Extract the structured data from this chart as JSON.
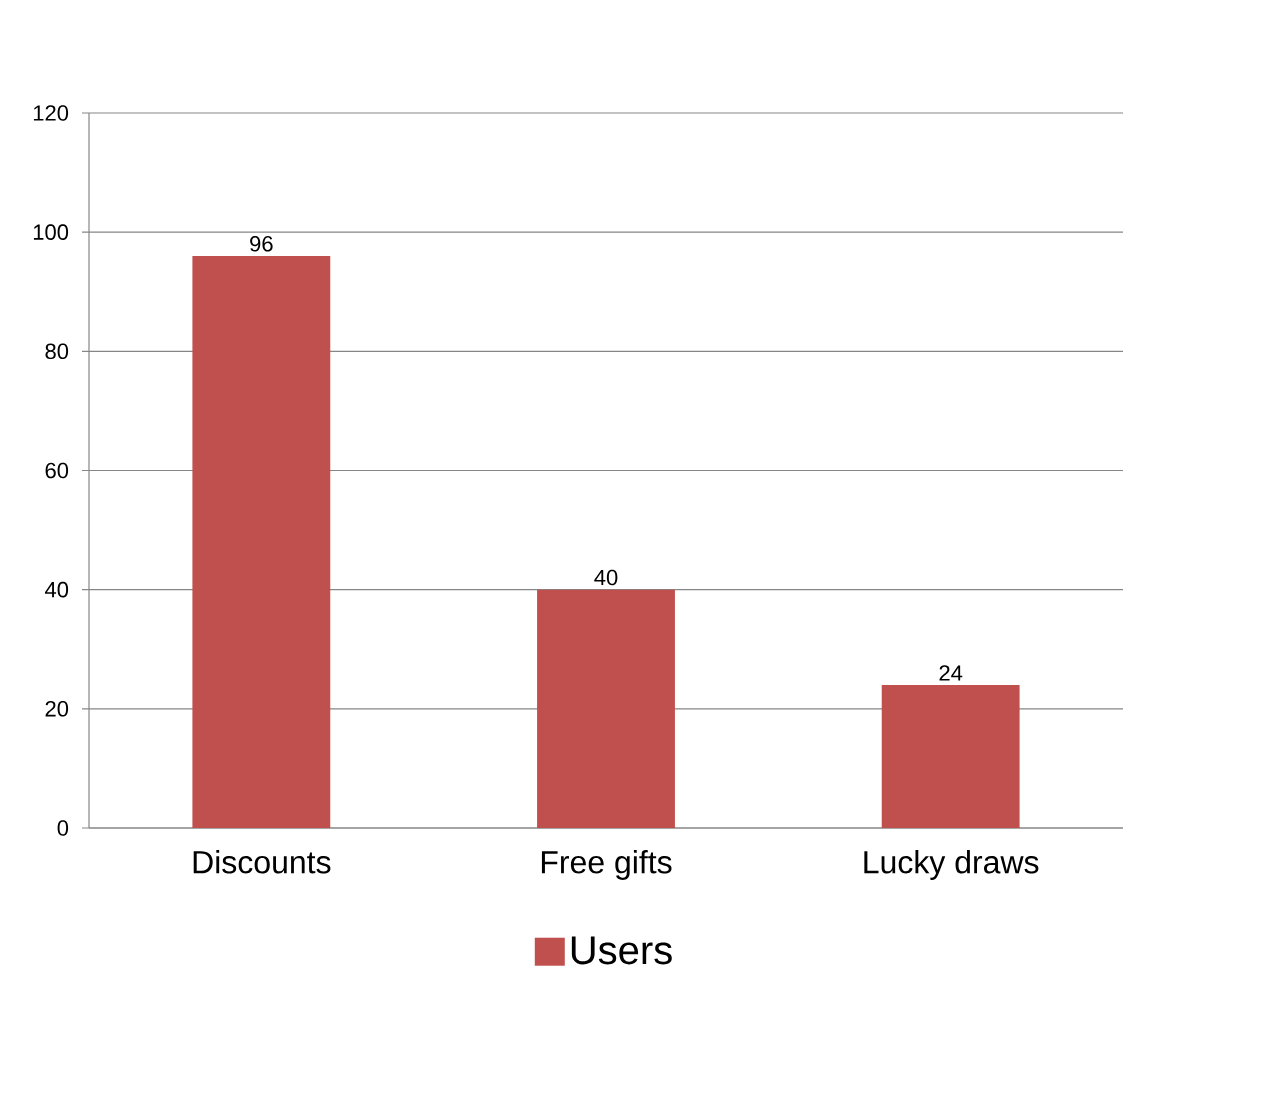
{
  "chart_data": {
    "type": "bar",
    "categories": [
      "Discounts",
      "Free gifts",
      "Lucky draws"
    ],
    "series": [
      {
        "name": "Users",
        "color": "#c0504d",
        "values": [
          96,
          40,
          24
        ]
      }
    ],
    "ylim": [
      0,
      120
    ],
    "yticks": [
      0,
      20,
      40,
      60,
      80,
      100,
      120
    ],
    "grid": "y",
    "legend": "bottom",
    "data_labels": true
  }
}
